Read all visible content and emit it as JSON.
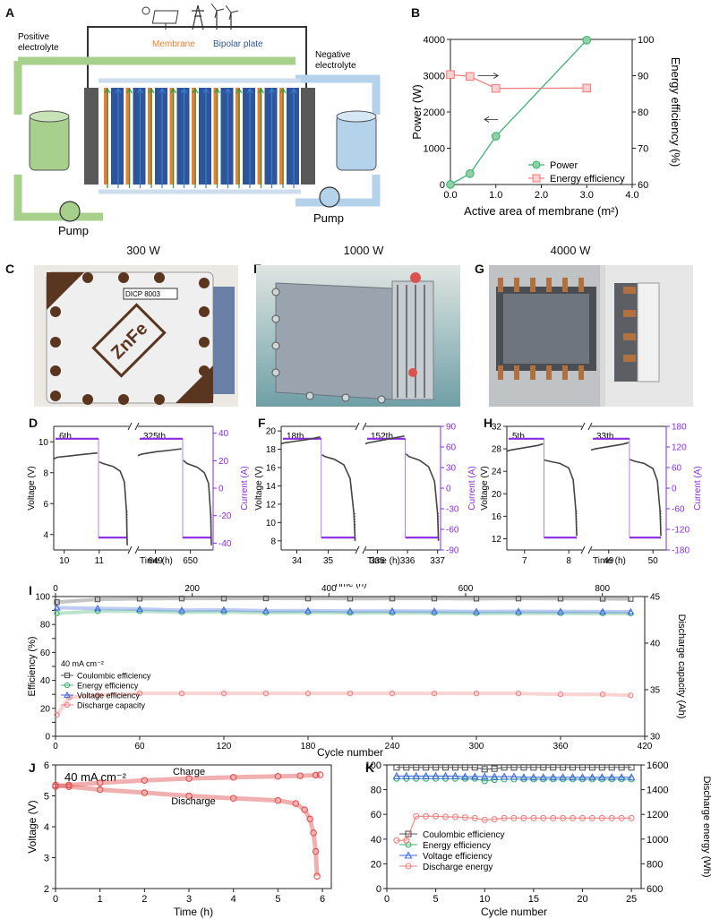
{
  "panels": {
    "A": {
      "letter": "A",
      "labels": {
        "positive": [
          "Positive",
          "electrolyte"
        ],
        "negative": [
          "Negative",
          "electrolyte"
        ],
        "membrane": "Membrane",
        "bipolar": "Bipolar plate",
        "pump_left": "Pump",
        "pump_right": "Pump"
      },
      "colors": {
        "positive": "#a8d08d",
        "negative": "#b4d3ea",
        "membrane": "#ee7d31",
        "bipolar": "#2e5597",
        "endplate": "#595959"
      }
    },
    "B": {
      "letter": "B"
    },
    "C": {
      "letter": "C",
      "title": "300 W",
      "logo_text": "ZnFe",
      "badge_text": "DICP 8003"
    },
    "E": {
      "letter": "E",
      "title": "1000 W"
    },
    "G": {
      "letter": "G",
      "title": "4000 W"
    },
    "D": {
      "letter": "D"
    },
    "F": {
      "letter": "F"
    },
    "H": {
      "letter": "H"
    },
    "I": {
      "letter": "I"
    },
    "J": {
      "letter": "J"
    },
    "K": {
      "letter": "K"
    }
  },
  "chart_data": [
    {
      "id": "B",
      "type": "line",
      "xlabel": "Active area of membrane (m²)",
      "ylabel": "Power (W)",
      "y2label": "Energy efficiency (%)",
      "xlim": [
        0,
        4
      ],
      "xticks": [
        "0.0",
        "1.0",
        "2.0",
        "3.0",
        "4.0"
      ],
      "ylim": [
        0,
        4000
      ],
      "yticks": [
        "0",
        "1000",
        "2000",
        "3000",
        "4000"
      ],
      "y2lim": [
        60,
        100
      ],
      "y2ticks": [
        "60",
        "70",
        "80",
        "90",
        "100"
      ],
      "legend_position": "bottom-right",
      "series": [
        {
          "name": "Power",
          "axis": "left",
          "color": "#3cb371",
          "marker": "circle",
          "x": [
            0.0,
            0.43,
            1.0,
            3.0
          ],
          "values": [
            0,
            300,
            1330,
            3980
          ]
        },
        {
          "name": "Energy efficiency",
          "axis": "right",
          "color": "#f08080",
          "marker": "square",
          "x": [
            0.0,
            0.43,
            1.0,
            3.0
          ],
          "values": [
            90.3,
            89.8,
            86.5,
            86.6
          ]
        }
      ]
    },
    {
      "id": "D",
      "type": "line",
      "xlabel": "Time (h)",
      "ylabel": "Voltage (V)",
      "y2label": "Current (A)",
      "ylim": [
        3,
        11
      ],
      "yticks": [
        "4",
        "6",
        "8",
        "10"
      ],
      "y2lim": [
        -45,
        45
      ],
      "y2ticks": [
        "-40",
        "-20",
        "0",
        "20",
        "40"
      ],
      "segments": [
        {
          "label": "6th",
          "xlim": [
            9.7,
            11.85
          ],
          "xticks": [
            "10",
            "11"
          ],
          "x": [
            9.7,
            9.8,
            10.2,
            10.6,
            10.95,
            11.0,
            11.1,
            11.4,
            11.6,
            11.72,
            11.78,
            11.8
          ],
          "values": [
            8.9,
            9.0,
            9.1,
            9.2,
            9.28,
            8.7,
            8.6,
            8.4,
            8.1,
            7.4,
            5.5,
            3.3
          ],
          "current_switch": 10.98,
          "current_end": 11.8
        },
        {
          "label": "325th",
          "xlim": [
            648.5,
            650.65
          ],
          "xticks": [
            "649",
            "650"
          ],
          "x": [
            648.5,
            648.6,
            649.0,
            649.4,
            649.75,
            649.8,
            649.9,
            650.2,
            650.4,
            650.52,
            650.58,
            650.6
          ],
          "values": [
            9.1,
            9.2,
            9.35,
            9.45,
            9.55,
            8.8,
            8.6,
            8.35,
            8.0,
            7.3,
            5.3,
            3.3
          ],
          "current_switch": 649.78,
          "current_end": 650.6
        }
      ],
      "current_values": [
        36,
        -36
      ]
    },
    {
      "id": "F",
      "type": "line",
      "xlabel": "Time (h)",
      "ylabel": "Voltage (V)",
      "y2label": "Current (A)",
      "ylim": [
        7,
        20.5
      ],
      "yticks": [
        "8",
        "10",
        "12",
        "14",
        "16",
        "18",
        "20"
      ],
      "y2lim": [
        -90,
        90
      ],
      "y2ticks": [
        "-90",
        "-60",
        "-30",
        "0",
        "30",
        "60",
        "90"
      ],
      "segments": [
        {
          "label": "18th",
          "xlim": [
            33.5,
            35.9
          ],
          "xticks": [
            "34",
            "35"
          ],
          "x": [
            33.5,
            33.6,
            34.0,
            34.4,
            34.75,
            34.8,
            34.9,
            35.2,
            35.5,
            35.7,
            35.82,
            35.86
          ],
          "values": [
            18.6,
            18.7,
            18.9,
            19.1,
            19.35,
            17.4,
            17.2,
            16.9,
            16.3,
            14.8,
            11.0,
            8.0
          ],
          "current_switch": 34.78,
          "current_end": 35.86
        },
        {
          "label": "152th",
          "xlim": [
            334.6,
            337.1
          ],
          "xticks": [
            "335",
            "336",
            "337"
          ],
          "x": [
            334.6,
            334.7,
            335.1,
            335.5,
            335.9,
            335.95,
            336.05,
            336.4,
            336.7,
            336.9,
            337.0,
            337.03
          ],
          "values": [
            18.6,
            18.7,
            18.95,
            19.2,
            19.45,
            17.5,
            17.2,
            16.8,
            16.1,
            14.5,
            11.0,
            8.0
          ],
          "current_switch": 335.93,
          "current_end": 337.03
        }
      ],
      "current_values": [
        72,
        -72
      ]
    },
    {
      "id": "H",
      "type": "line",
      "xlabel": "Time (h)",
      "ylabel": "Voltage (V)",
      "y2label": "Current (A)",
      "ylim": [
        10,
        32
      ],
      "yticks": [
        "12",
        "16",
        "20",
        "24",
        "28",
        "32"
      ],
      "y2lim": [
        -180,
        180
      ],
      "y2ticks": [
        "-180",
        "-120",
        "-60",
        "0",
        "60",
        "120",
        "180"
      ],
      "segments": [
        {
          "label": "5th",
          "xlim": [
            6.6,
            8.3
          ],
          "xticks": [
            "7",
            "8"
          ],
          "x": [
            6.6,
            6.7,
            7.0,
            7.3,
            7.42,
            7.45,
            7.55,
            7.8,
            8.0,
            8.1,
            8.16,
            8.18
          ],
          "values": [
            27.6,
            27.8,
            28.2,
            28.6,
            28.9,
            26.0,
            25.8,
            25.4,
            24.6,
            22.5,
            17.0,
            12.5
          ],
          "current_switch": 7.44,
          "current_end": 8.18
        },
        {
          "label": "33th",
          "xlim": [
            48.6,
            50.3
          ],
          "xticks": [
            "49",
            "50"
          ],
          "x": [
            48.6,
            48.7,
            49.0,
            49.3,
            49.45,
            49.48,
            49.58,
            49.8,
            50.0,
            50.1,
            50.16,
            50.18
          ],
          "values": [
            27.8,
            28.0,
            28.4,
            28.8,
            29.1,
            26.1,
            25.8,
            25.4,
            24.5,
            22.3,
            17.0,
            12.5
          ],
          "current_switch": 49.47,
          "current_end": 50.18
        }
      ],
      "current_values": [
        144,
        -144
      ]
    },
    {
      "id": "I",
      "type": "scatter",
      "xlabel": "Cycle number",
      "x2label": "Time (h)",
      "ylabel": "Efficiency (%)",
      "y2label": "Discharge capacity (Ah)",
      "xlim": [
        0,
        420
      ],
      "xticks": [
        "0",
        "60",
        "120",
        "180",
        "240",
        "300",
        "360",
        "420"
      ],
      "x2ticks": [
        "0",
        "200",
        "400",
        "600",
        "800"
      ],
      "ylim": [
        0,
        100
      ],
      "yticks": [
        "0",
        "10",
        "20",
        "30",
        "40",
        "50",
        "60",
        "70",
        "80",
        "90",
        "100"
      ],
      "y2lim": [
        30,
        45
      ],
      "y2ticks": [
        "30",
        "35",
        "40",
        "45"
      ],
      "annotation": "40 mA cm⁻²",
      "series": [
        {
          "name": "Coulombic efficiency",
          "color": "#555555",
          "marker": "square",
          "x": [
            1,
            30,
            60,
            90,
            120,
            150,
            180,
            210,
            240,
            270,
            300,
            330,
            360,
            390,
            410
          ],
          "values": [
            96,
            98,
            98.5,
            98.6,
            98.6,
            98.7,
            98.6,
            98.5,
            98.6,
            98.6,
            98.5,
            98.6,
            98.5,
            98.4,
            98.3
          ]
        },
        {
          "name": "Energy efficiency",
          "color": "#3cb371",
          "marker": "circle",
          "x": [
            1,
            30,
            60,
            90,
            120,
            150,
            180,
            210,
            240,
            270,
            300,
            330,
            360,
            390,
            410
          ],
          "values": [
            88,
            89.5,
            89.5,
            88.8,
            89.0,
            88.5,
            88.6,
            88.3,
            88.4,
            88.2,
            88.0,
            88.1,
            88.0,
            87.9,
            87.8
          ]
        },
        {
          "name": "Voltage efficiency",
          "color": "#4169e1",
          "marker": "triangle",
          "x": [
            1,
            30,
            60,
            90,
            120,
            150,
            180,
            210,
            240,
            270,
            300,
            330,
            360,
            390,
            410
          ],
          "values": [
            92,
            91.5,
            91.0,
            90.2,
            90.4,
            89.8,
            89.9,
            89.6,
            89.7,
            89.5,
            89.3,
            89.4,
            89.3,
            89.2,
            89.1
          ]
        },
        {
          "name": "Discharge capacity",
          "axis": "right",
          "color": "#f08080",
          "marker": "circle",
          "x": [
            1,
            10,
            30,
            60,
            90,
            120,
            150,
            180,
            210,
            240,
            270,
            300,
            330,
            360,
            390,
            410
          ],
          "values": [
            32.3,
            34.2,
            34.4,
            34.6,
            34.6,
            34.6,
            34.6,
            34.6,
            34.6,
            34.6,
            34.6,
            34.6,
            34.6,
            34.5,
            34.5,
            34.4
          ]
        }
      ]
    },
    {
      "id": "J",
      "type": "line",
      "xlabel": "Time (h)",
      "ylabel": "Voltage (V)",
      "xlim": [
        0,
        6.2
      ],
      "xticks": [
        "0",
        "1",
        "2",
        "3",
        "4",
        "5",
        "6"
      ],
      "ylim": [
        2,
        6
      ],
      "yticks": [
        "2",
        "3",
        "4",
        "5",
        "6"
      ],
      "annotation": "40 mA cm⁻²",
      "series": [
        {
          "name": "Charge",
          "color": "#e05050",
          "x": [
            0,
            0.3,
            1,
            2,
            3,
            4,
            5,
            5.5,
            5.85,
            5.95
          ],
          "values": [
            5.3,
            5.35,
            5.42,
            5.5,
            5.56,
            5.6,
            5.63,
            5.65,
            5.67,
            5.68
          ]
        },
        {
          "name": "Discharge",
          "color": "#e05050",
          "x": [
            0,
            0.3,
            1,
            2,
            3,
            4,
            5,
            5.4,
            5.6,
            5.72,
            5.8,
            5.85,
            5.88
          ],
          "values": [
            5.35,
            5.3,
            5.2,
            5.1,
            5.0,
            4.92,
            4.85,
            4.75,
            4.55,
            4.25,
            3.8,
            3.2,
            2.4
          ]
        }
      ]
    },
    {
      "id": "K",
      "type": "line",
      "xlabel": "Cycle number",
      "ylabel": "Efficiency (%)",
      "y2label": "Discharge energy (Wh)",
      "xlim": [
        0,
        26
      ],
      "xticks": [
        "0",
        "5",
        "10",
        "15",
        "20",
        "25"
      ],
      "ylim": [
        0,
        100
      ],
      "yticks": [
        "0",
        "20",
        "40",
        "60",
        "80",
        "100"
      ],
      "y2lim": [
        600,
        1600
      ],
      "y2ticks": [
        "600",
        "800",
        "1000",
        "1200",
        "1400",
        "1600"
      ],
      "series": [
        {
          "name": "Coulombic efficiency",
          "color": "#555555",
          "marker": "square",
          "x": [
            1,
            2,
            3,
            4,
            5,
            6,
            7,
            8,
            9,
            10,
            11,
            12,
            13,
            14,
            15,
            16,
            17,
            18,
            19,
            20,
            21,
            22,
            23,
            24,
            25
          ],
          "values": [
            98,
            98,
            98,
            98,
            98,
            98,
            98,
            98,
            98,
            96.5,
            97,
            98,
            98,
            98,
            98,
            98,
            98,
            98,
            98,
            98,
            98,
            98,
            98,
            98,
            98
          ]
        },
        {
          "name": "Energy efficiency",
          "color": "#3cb371",
          "marker": "circle",
          "x": [
            1,
            2,
            3,
            4,
            5,
            6,
            7,
            8,
            9,
            10,
            11,
            12,
            13,
            14,
            15,
            16,
            17,
            18,
            19,
            20,
            21,
            22,
            23,
            24,
            25
          ],
          "values": [
            89,
            89,
            89,
            89,
            89,
            89,
            89,
            89,
            89,
            87,
            88,
            88.5,
            88.5,
            88.5,
            88.5,
            88.5,
            88.5,
            88.5,
            88.5,
            88.5,
            88.5,
            88.5,
            88.5,
            88.5,
            88.5
          ]
        },
        {
          "name": "Voltage efficiency",
          "color": "#4169e1",
          "marker": "triangle",
          "x": [
            1,
            2,
            3,
            4,
            5,
            6,
            7,
            8,
            9,
            10,
            11,
            12,
            13,
            14,
            15,
            16,
            17,
            18,
            19,
            20,
            21,
            22,
            23,
            24,
            25
          ],
          "values": [
            91,
            91,
            91,
            91,
            91,
            91,
            91,
            90.5,
            90.5,
            90.5,
            90.5,
            90.5,
            90.5,
            90,
            90,
            90,
            90,
            90,
            90,
            90,
            90,
            90,
            90,
            90,
            90
          ]
        },
        {
          "name": "Discharge energy",
          "axis": "right",
          "color": "#f08080",
          "marker": "circle",
          "x": [
            1,
            2,
            3,
            4,
            5,
            6,
            7,
            8,
            9,
            10,
            11,
            12,
            13,
            14,
            15,
            16,
            17,
            18,
            19,
            20,
            21,
            22,
            23,
            24,
            25
          ],
          "values": [
            990,
            990,
            1185,
            1185,
            1185,
            1180,
            1180,
            1175,
            1170,
            1155,
            1160,
            1170,
            1170,
            1170,
            1170,
            1170,
            1170,
            1170,
            1170,
            1170,
            1170,
            1170,
            1170,
            1170,
            1170
          ]
        }
      ]
    }
  ]
}
